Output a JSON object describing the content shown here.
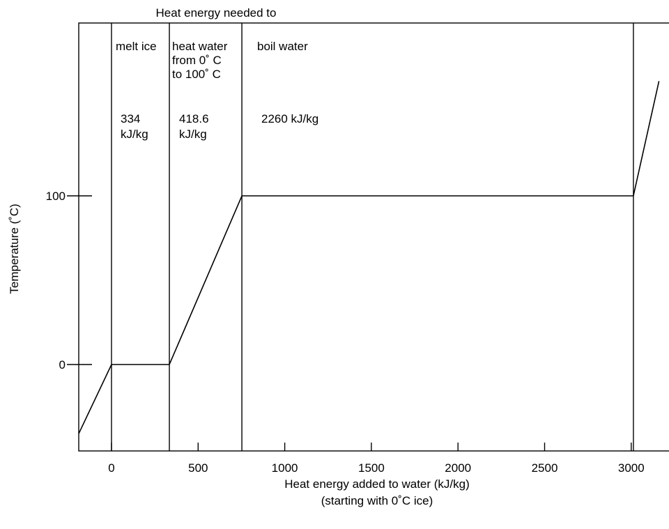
{
  "chart_data": {
    "type": "line",
    "title": "Heat energy needed to",
    "xlabel": "Heat energy added to water (kJ/kg)",
    "xlabel2": "(starting with 0˚C ice)",
    "ylabel": "Temperature (˚C)",
    "xlim": [
      -190,
      3160
    ],
    "ylim": [
      -43,
      199
    ],
    "x_ticks": [
      0,
      500,
      1000,
      1500,
      2000,
      2500,
      3000
    ],
    "x_tick_labels": [
      "0",
      "500",
      "1000",
      "1500",
      "2000",
      "2500",
      "3000"
    ],
    "y_ticks": [
      0,
      100
    ],
    "y_tick_labels": [
      "0",
      "100"
    ],
    "grid": false,
    "series": [
      {
        "x": [
          -190,
          0,
          334,
          752.6,
          3012.6,
          3160
        ],
        "y": [
          -41,
          0,
          0,
          100,
          100,
          168
        ]
      }
    ],
    "phase_boundaries": [
      0,
      334,
      752.6,
      3012.6
    ],
    "phases": [
      {
        "label_lines": [
          "melt ice"
        ],
        "energy_lines": [
          "334",
          "kJ/kg"
        ]
      },
      {
        "label_lines": [
          "heat water",
          "from 0˚ C",
          "to 100˚ C"
        ],
        "energy_lines": [
          "418.6",
          "kJ/kg"
        ]
      },
      {
        "label_lines": [
          "boil water"
        ],
        "energy_lines": [
          "2260 kJ/kg"
        ]
      }
    ]
  }
}
